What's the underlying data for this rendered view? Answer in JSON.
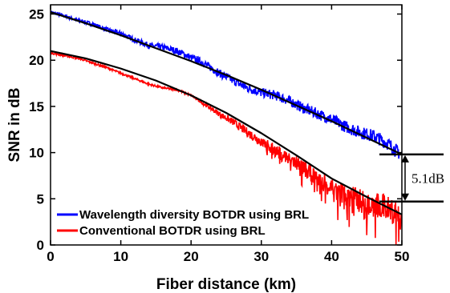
{
  "chart_data": {
    "type": "line",
    "title": "",
    "xlabel": "Fiber distance (km)",
    "ylabel": "SNR in dB",
    "xlim": [
      0,
      50
    ],
    "ylim": [
      0,
      26
    ],
    "xticks": [
      0,
      10,
      20,
      30,
      40,
      50
    ],
    "yticks": [
      0,
      5,
      10,
      15,
      20,
      25
    ],
    "grid": false,
    "legend_position": "bottom-left",
    "series": [
      {
        "name": "Wavelength diversity BOTDR using BRL",
        "color": "#0000ff",
        "style": "noisy-measured",
        "x": [
          0,
          2,
          4,
          6,
          8,
          10,
          12,
          14,
          16,
          18,
          20,
          22,
          24,
          26,
          28,
          30,
          32,
          34,
          36,
          38,
          40,
          42,
          44,
          46,
          48,
          50
        ],
        "y": [
          25.2,
          24.8,
          24.3,
          23.9,
          23.3,
          22.9,
          22.2,
          21.6,
          21.4,
          21.0,
          20.3,
          19.6,
          18.6,
          17.8,
          17.0,
          16.5,
          16.2,
          15.6,
          14.8,
          14.2,
          13.6,
          12.8,
          12.2,
          11.8,
          11.0,
          9.7
        ]
      },
      {
        "name": "Conventional BOTDR using BRL",
        "color": "#ff0000",
        "style": "noisy-measured",
        "x": [
          0,
          2,
          4,
          6,
          8,
          10,
          12,
          14,
          16,
          18,
          20,
          22,
          24,
          26,
          28,
          30,
          32,
          34,
          36,
          38,
          40,
          42,
          44,
          46,
          48,
          50
        ],
        "y": [
          20.8,
          20.5,
          20.2,
          19.7,
          19.2,
          18.6,
          18.0,
          17.4,
          17.0,
          16.8,
          16.2,
          15.2,
          14.2,
          13.3,
          12.2,
          11.2,
          10.2,
          9.4,
          8.3,
          7.3,
          6.2,
          5.5,
          4.8,
          4.4,
          4.0,
          3.0
        ]
      },
      {
        "name": "",
        "color": "#000000",
        "style": "fit",
        "x": [
          0,
          5,
          10,
          15,
          20,
          25,
          30,
          35,
          40,
          45,
          50
        ],
        "y": [
          25.2,
          24.0,
          22.7,
          21.3,
          19.9,
          18.4,
          16.8,
          15.1,
          13.4,
          11.6,
          9.8
        ]
      },
      {
        "name": "",
        "color": "#000000",
        "style": "fit",
        "x": [
          0,
          5,
          10,
          15,
          20,
          25,
          30,
          35,
          40,
          45,
          50
        ],
        "y": [
          21.0,
          20.2,
          19.1,
          17.8,
          16.2,
          14.3,
          12.1,
          9.7,
          7.2,
          5.2,
          3.3
        ]
      }
    ],
    "annotation": {
      "label": "5.1dB",
      "x": 50,
      "y_top": 9.8,
      "y_bottom": 4.7
    }
  }
}
